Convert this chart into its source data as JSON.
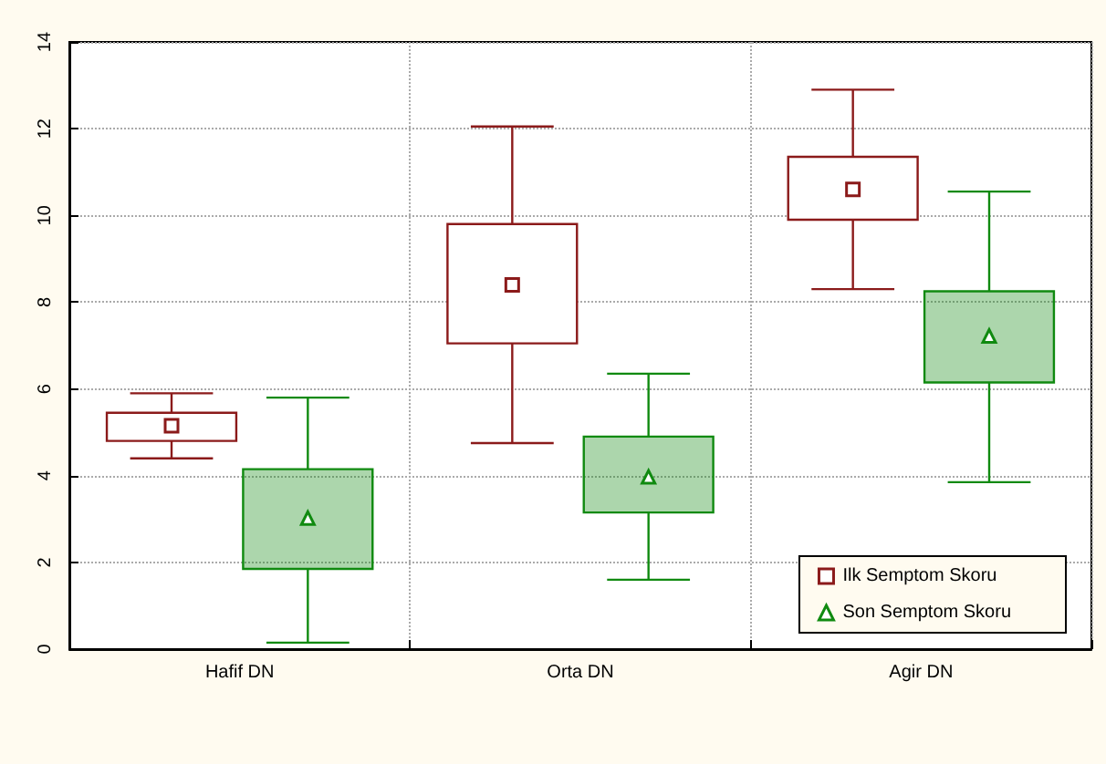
{
  "chart_data": {
    "type": "box",
    "categories": [
      "Hafif DN",
      "Orta DN",
      "Agir DN"
    ],
    "series": [
      {
        "name": "Ilk Semptom Skoru",
        "color": "#8b1a1a",
        "marker": "square",
        "boxes": [
          {
            "low": 4.4,
            "q1": 4.8,
            "median": 5.15,
            "q3": 5.45,
            "high": 5.9
          },
          {
            "low": 4.75,
            "q1": 7.05,
            "median": 8.4,
            "q3": 9.8,
            "high": 12.05
          },
          {
            "low": 8.3,
            "q1": 9.9,
            "median": 10.6,
            "q3": 11.35,
            "high": 12.9
          }
        ]
      },
      {
        "name": "Son Semptom Skoru",
        "color": "#108a10",
        "marker": "triangle",
        "boxes": [
          {
            "low": 0.15,
            "q1": 1.85,
            "median": 3.0,
            "q3": 4.15,
            "high": 5.8
          },
          {
            "low": 1.6,
            "q1": 3.15,
            "median": 3.95,
            "q3": 4.9,
            "high": 6.35
          },
          {
            "low": 3.85,
            "q1": 6.15,
            "median": 7.2,
            "q3": 8.25,
            "high": 10.55
          }
        ]
      }
    ],
    "ylim": [
      0,
      14
    ],
    "yticks": [
      0,
      2,
      4,
      6,
      8,
      10,
      12,
      14
    ],
    "grid": true,
    "legend": "bottom right"
  }
}
